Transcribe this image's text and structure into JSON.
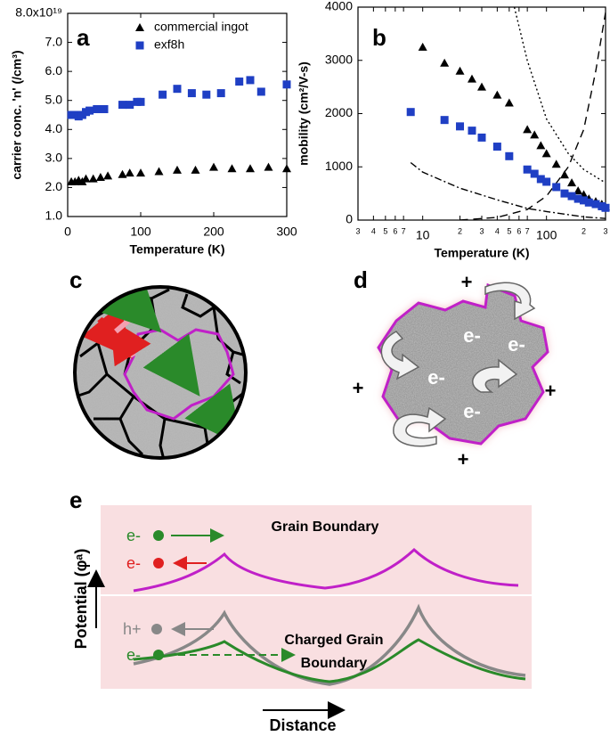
{
  "chart_data": [
    {
      "type": "scatter",
      "panel_label": "a",
      "xlabel": "Temperature (K)",
      "ylabel": "carrier conc. 'n' (/cm³)",
      "xlim": [
        0,
        300
      ],
      "ylim": [
        1,
        8
      ],
      "xticks": [
        0,
        100,
        200,
        300
      ],
      "yticks": [
        {
          "value": 1,
          "label": "1.0"
        },
        {
          "value": 2,
          "label": "2.0"
        },
        {
          "value": 3,
          "label": "3.0"
        },
        {
          "value": 4,
          "label": "4.0"
        },
        {
          "value": 5,
          "label": "5.0"
        },
        {
          "value": 6,
          "label": "6.0"
        },
        {
          "value": 7,
          "label": "7.0"
        },
        {
          "value": 8,
          "label": "8.0x10¹⁹"
        }
      ],
      "legend": "upper-right",
      "series": [
        {
          "name": "commercial ingot",
          "color": "#000000",
          "marker": "triangle",
          "x": [
            5,
            10,
            15,
            20,
            25,
            35,
            45,
            55,
            75,
            85,
            100,
            125,
            150,
            175,
            200,
            225,
            250,
            275,
            300
          ],
          "values": [
            2.2,
            2.2,
            2.25,
            2.2,
            2.3,
            2.3,
            2.35,
            2.4,
            2.45,
            2.5,
            2.5,
            2.55,
            2.6,
            2.6,
            2.7,
            2.65,
            2.65,
            2.7,
            2.65
          ]
        },
        {
          "name": "exf8h",
          "color": "#1f3fc4",
          "marker": "square",
          "x": [
            5,
            10,
            15,
            20,
            25,
            30,
            40,
            50,
            75,
            85,
            95,
            100,
            130,
            150,
            170,
            190,
            210,
            235,
            250,
            265,
            300
          ],
          "values": [
            4.5,
            4.5,
            4.45,
            4.5,
            4.6,
            4.65,
            4.7,
            4.7,
            4.85,
            4.85,
            4.95,
            4.95,
            5.2,
            5.4,
            5.25,
            5.2,
            5.25,
            5.65,
            5.7,
            5.3,
            5.55
          ]
        }
      ]
    },
    {
      "type": "scatter",
      "panel_label": "b",
      "xlabel": "Temperature (K)",
      "ylabel": "mobility (cm²/V-s)",
      "xscale": "log",
      "xlim": [
        3,
        300
      ],
      "ylim": [
        0,
        4000
      ],
      "xticks": [
        3,
        4,
        5,
        6,
        7,
        10,
        {
          "value": 20,
          "label": "2"
        },
        {
          "value": 30,
          "label": "3"
        },
        {
          "value": 40,
          "label": "4"
        },
        {
          "value": 50,
          "label": "5"
        },
        {
          "value": 60,
          "label": "6"
        },
        {
          "value": 70,
          "label": "7"
        },
        100,
        {
          "value": 200,
          "label": "2"
        },
        {
          "value": 300,
          "label": "3"
        }
      ],
      "yticks": [
        0,
        1000,
        2000,
        3000,
        4000
      ],
      "series": [
        {
          "color": "#000000",
          "marker": "triangle",
          "x": [
            10,
            15,
            20,
            25,
            30,
            40,
            50,
            70,
            80,
            90,
            100,
            120,
            140,
            160,
            180,
            200,
            220,
            250,
            280,
            300
          ],
          "values": [
            3250,
            2950,
            2800,
            2650,
            2500,
            2350,
            2200,
            1700,
            1600,
            1400,
            1250,
            1050,
            850,
            700,
            550,
            480,
            400,
            350,
            300,
            250
          ]
        },
        {
          "color": "#1f3fc4",
          "marker": "square",
          "x": [
            8,
            15,
            20,
            25,
            30,
            40,
            50,
            70,
            80,
            90,
            100,
            120,
            140,
            160,
            180,
            200,
            220,
            250,
            280,
            300
          ],
          "values": [
            2030,
            1880,
            1760,
            1680,
            1550,
            1380,
            1200,
            950,
            870,
            770,
            720,
            620,
            500,
            450,
            400,
            370,
            330,
            300,
            260,
            230
          ]
        }
      ],
      "lines": [
        {
          "color": "#000000",
          "style": "dotted",
          "x": [
            55,
            70,
            100,
            150,
            200,
            300
          ],
          "values": [
            4000,
            3000,
            1900,
            1250,
            950,
            700
          ]
        },
        {
          "color": "#000000",
          "style": "dashed",
          "x": [
            20,
            40,
            70,
            100,
            150,
            200,
            250,
            300
          ],
          "values": [
            0,
            50,
            200,
            450,
            1000,
            1700,
            2800,
            3900
          ]
        },
        {
          "color": "#000000",
          "style": "dash-dot",
          "x": [
            8,
            10,
            20,
            40,
            70,
            100,
            200,
            300
          ],
          "values": [
            1080,
            900,
            600,
            380,
            220,
            160,
            60,
            30
          ]
        }
      ]
    }
  ],
  "panel_c": {
    "label": "c"
  },
  "panel_d": {
    "label": "d",
    "charges": [
      "+",
      "+",
      "+",
      "+"
    ],
    "electrons": [
      "e-",
      "e-",
      "e-",
      "e-"
    ]
  },
  "panel_e": {
    "label": "e",
    "top_title": "Grain Boundary",
    "bottom_title": [
      "Charged Grain",
      "Boundary"
    ],
    "carriers": [
      "e-",
      "e-",
      "h+",
      "e-"
    ],
    "ylabel": "Potential (φᵃ)",
    "xlabel": "Distance"
  }
}
